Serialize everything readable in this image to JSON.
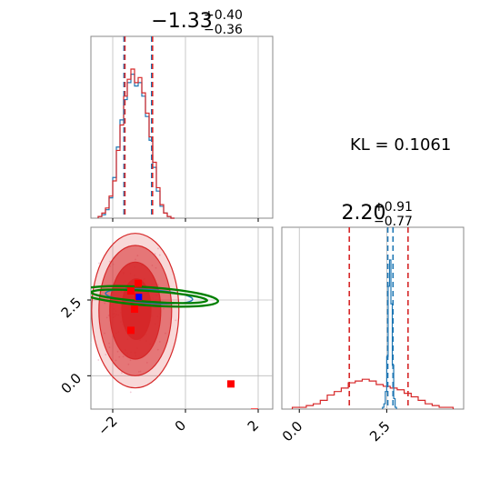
{
  "chart_data": {
    "type": "corner",
    "kl_text": "KL = 0.1061",
    "colors": {
      "red": "#d62728",
      "blue": "#1f77b4",
      "green": "#008000",
      "marker_red": "#ff0000",
      "marker_blue": "#0000ff"
    },
    "param1": {
      "title_main": "−1.33",
      "title_sup": "+0.40",
      "title_sub": "−0.36",
      "xlim": [
        -2.6,
        2.4
      ],
      "quantile_lines": [
        -1.69,
        -0.93
      ],
      "grid_x": [
        -2,
        0,
        2
      ],
      "hist_bins_x": [
        -2.35,
        -2.25,
        -2.15,
        -2.05,
        -1.95,
        -1.85,
        -1.75,
        -1.65,
        -1.55,
        -1.45,
        -1.35,
        -1.25,
        -1.15,
        -1.05,
        -0.95,
        -0.85,
        -0.75,
        -0.65,
        -0.55,
        -0.45,
        -0.35
      ],
      "hist_red": [
        0.01,
        0.03,
        0.06,
        0.13,
        0.22,
        0.4,
        0.55,
        0.72,
        0.82,
        0.88,
        0.8,
        0.83,
        0.74,
        0.62,
        0.48,
        0.33,
        0.18,
        0.08,
        0.03,
        0.01,
        0.0
      ],
      "hist_blue": [
        0.01,
        0.02,
        0.05,
        0.12,
        0.24,
        0.42,
        0.58,
        0.7,
        0.8,
        0.85,
        0.78,
        0.8,
        0.72,
        0.6,
        0.46,
        0.3,
        0.16,
        0.07,
        0.03,
        0.01,
        0.0
      ]
    },
    "param2": {
      "title_main": "2.20",
      "title_sup": "+0.91",
      "title_sub": "−0.77",
      "xlim": [
        -0.5,
        4.7
      ],
      "quantile_lines_red": [
        1.43,
        3.11
      ],
      "quantile_lines_blue": [
        2.53,
        2.68
      ],
      "grid_x": [
        0.0,
        2.5
      ],
      "tick_labels": [
        "0.0",
        "2.5"
      ],
      "hist_red_x": [
        -0.1,
        0.1,
        0.3,
        0.5,
        0.7,
        0.9,
        1.1,
        1.3,
        1.5,
        1.7,
        1.9,
        2.1,
        2.3,
        2.5,
        2.7,
        2.9,
        3.1,
        3.3,
        3.5,
        3.7,
        3.9,
        4.1,
        4.3
      ],
      "hist_red": [
        0.01,
        0.01,
        0.02,
        0.03,
        0.05,
        0.08,
        0.1,
        0.12,
        0.15,
        0.16,
        0.17,
        0.16,
        0.14,
        0.13,
        0.12,
        0.11,
        0.09,
        0.07,
        0.05,
        0.03,
        0.02,
        0.01,
        0.01
      ],
      "hist_blue_x": [
        2.4,
        2.44,
        2.48,
        2.52,
        2.56,
        2.6,
        2.64,
        2.68,
        2.72,
        2.76
      ],
      "hist_blue": [
        0.01,
        0.03,
        0.1,
        0.3,
        0.7,
        0.85,
        0.6,
        0.25,
        0.06,
        0.01
      ]
    },
    "scatter": {
      "xlim": [
        -2.6,
        2.4
      ],
      "ylim": [
        -1.1,
        4.9
      ],
      "yticks": [
        0.0,
        2.5
      ],
      "ytick_labels": [
        "0.0",
        "2.5"
      ],
      "xticks": [
        -2,
        0,
        2
      ],
      "xtick_labels": [
        "−2",
        "0",
        "2"
      ],
      "markers_red": [
        [
          -1.3,
          3.05
        ],
        [
          -1.5,
          2.8
        ],
        [
          -1.3,
          2.6
        ],
        [
          -1.4,
          2.2
        ],
        [
          -1.5,
          1.5
        ],
        [
          1.25,
          -0.27
        ],
        [
          1.9,
          -1.2
        ]
      ],
      "marker_blue": [
        -1.28,
        2.6
      ],
      "green_ellipses": [
        {
          "cx": -1.0,
          "cy": 2.62,
          "rx": 1.9,
          "ry": 0.3,
          "angle": -4
        },
        {
          "cx": -1.0,
          "cy": 2.62,
          "rx": 1.6,
          "ry": 0.18,
          "angle": -4
        }
      ],
      "blue_ellipse": {
        "cx": -1.0,
        "cy": 2.62,
        "rx": 1.2,
        "ry": 0.22,
        "angle": -4
      },
      "red_contours": [
        {
          "cx": -1.38,
          "cy": 2.15,
          "rx": 1.2,
          "ry": 2.55,
          "opacity": 0.18
        },
        {
          "cx": -1.38,
          "cy": 2.15,
          "rx": 1.0,
          "ry": 2.15,
          "opacity": 0.55
        },
        {
          "cx": -1.38,
          "cy": 2.15,
          "rx": 0.7,
          "ry": 1.6,
          "opacity": 0.8
        },
        {
          "cx": -1.35,
          "cy": 2.2,
          "rx": 0.4,
          "ry": 1.0,
          "opacity": 0.95
        }
      ]
    }
  }
}
